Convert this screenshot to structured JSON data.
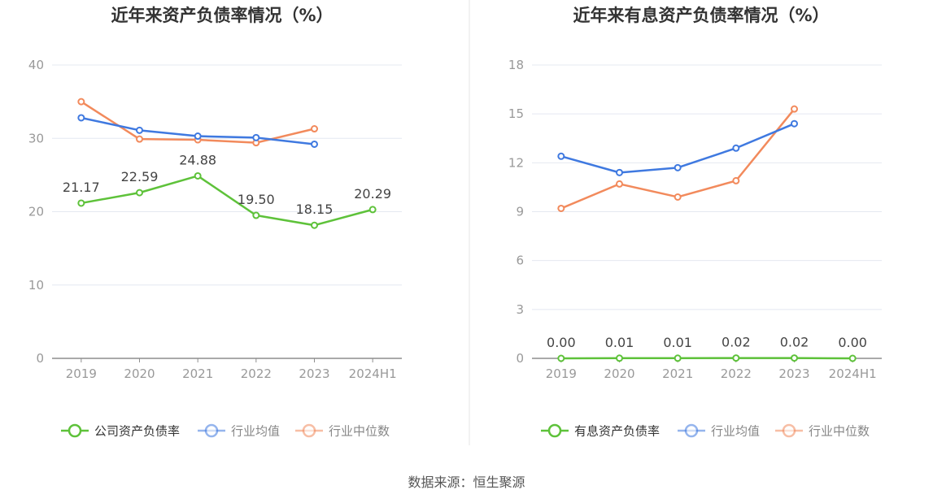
{
  "source": "数据来源：恒生聚源",
  "colors": {
    "company": "#5ec23a",
    "industry_avg": "#3f79e0",
    "industry_median": "#f28a5c",
    "grid": "#e4e8f1",
    "axis": "#999999",
    "divider": "#e6e6e6"
  },
  "chart_data": [
    {
      "type": "line",
      "title": "近年来资产负债率情况（%）",
      "categories": [
        "2019",
        "2020",
        "2021",
        "2022",
        "2023",
        "2024H1"
      ],
      "ylim": [
        0,
        40
      ],
      "yticks": [
        "0",
        "10",
        "20",
        "30",
        "40"
      ],
      "grid": true,
      "legend_position": "bottom",
      "series": [
        {
          "name": "公司资产负债率",
          "color_key": "company",
          "values": [
            21.17,
            22.59,
            24.88,
            19.5,
            18.15,
            20.29
          ],
          "labels": [
            "21.17",
            "22.59",
            "24.88",
            "19.50",
            "18.15",
            "20.29"
          ]
        },
        {
          "name": "行业均值",
          "color_key": "industry_avg",
          "values": [
            32.8,
            31.1,
            30.3,
            30.1,
            29.2,
            null
          ]
        },
        {
          "name": "行业中位数",
          "color_key": "industry_median",
          "values": [
            35.0,
            29.9,
            29.8,
            29.4,
            31.3,
            null
          ]
        }
      ]
    },
    {
      "type": "line",
      "title": "近年来有息资产负债率情况（%）",
      "categories": [
        "2019",
        "2020",
        "2021",
        "2022",
        "2023",
        "2024H1"
      ],
      "ylim": [
        0,
        18
      ],
      "yticks": [
        "0",
        "3",
        "6",
        "9",
        "12",
        "15",
        "18"
      ],
      "grid": true,
      "legend_position": "bottom",
      "series": [
        {
          "name": "有息资产负债率",
          "color_key": "company",
          "values": [
            0.0,
            0.01,
            0.01,
            0.02,
            0.02,
            0.0
          ],
          "labels": [
            "0.00",
            "0.01",
            "0.01",
            "0.02",
            "0.02",
            "0.00"
          ]
        },
        {
          "name": "行业均值",
          "color_key": "industry_avg",
          "values": [
            12.4,
            11.4,
            11.7,
            12.9,
            14.4,
            null
          ]
        },
        {
          "name": "行业中位数",
          "color_key": "industry_median",
          "values": [
            9.2,
            10.7,
            9.9,
            10.9,
            15.3,
            null
          ]
        }
      ]
    }
  ]
}
